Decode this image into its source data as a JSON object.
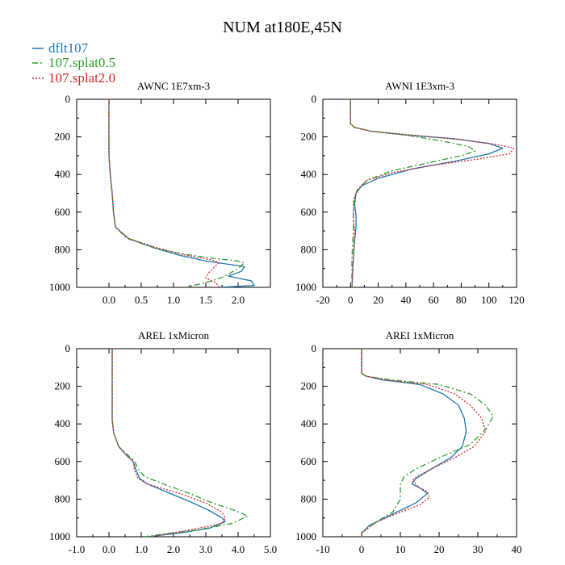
{
  "figure_title": "NUM at180E,45N",
  "colors": {
    "dflt107": "#1f77b4",
    "splat05": "#2ca02c",
    "splat20": "#d62728",
    "axis": "#000000"
  },
  "legend": [
    {
      "label": "dflt107",
      "color": "#1f77b4",
      "dash": "solid"
    },
    {
      "label": "107.splat0.5",
      "color": "#2ca02c",
      "dash": "dashdot"
    },
    {
      "label": "107.splat2.0",
      "color": "#d62728",
      "dash": "dotted"
    }
  ],
  "chart_data": [
    {
      "type": "line",
      "title": "AWNC  1E7xm-3",
      "xlim": [
        -0.5,
        2.5
      ],
      "ylim": [
        1000,
        0
      ],
      "xticks": [
        0.0,
        0.5,
        1.0,
        1.5,
        2.0
      ],
      "xtick_labels": [
        "0.0",
        "0.5",
        "1.0",
        "1.5",
        "2.0"
      ],
      "yticks": [
        0,
        200,
        400,
        600,
        800,
        1000
      ],
      "ytick_labels": [
        "0",
        "200",
        "400",
        "600",
        "800",
        "1000"
      ],
      "series": [
        {
          "name": "dflt107",
          "points": [
            [
              0.0,
              0
            ],
            [
              0.0,
              300
            ],
            [
              0.02,
              400
            ],
            [
              0.05,
              500
            ],
            [
              0.07,
              600
            ],
            [
              0.1,
              680
            ],
            [
              0.3,
              740
            ],
            [
              0.7,
              790
            ],
            [
              1.1,
              830
            ],
            [
              1.5,
              860
            ],
            [
              1.9,
              880
            ],
            [
              2.1,
              890
            ],
            [
              2.05,
              915
            ],
            [
              1.85,
              940
            ],
            [
              2.05,
              955
            ],
            [
              2.2,
              965
            ],
            [
              2.25,
              990
            ],
            [
              1.7,
              1000
            ]
          ]
        },
        {
          "name": "107.splat0.5",
          "points": [
            [
              0.0,
              0
            ],
            [
              0.0,
              300
            ],
            [
              0.02,
              400
            ],
            [
              0.05,
              500
            ],
            [
              0.07,
              600
            ],
            [
              0.1,
              680
            ],
            [
              0.28,
              740
            ],
            [
              0.7,
              790
            ],
            [
              1.1,
              820
            ],
            [
              1.6,
              845
            ],
            [
              2.0,
              860
            ],
            [
              2.1,
              870
            ],
            [
              2.0,
              900
            ],
            [
              1.8,
              940
            ],
            [
              1.6,
              965
            ],
            [
              1.2,
              1000
            ]
          ]
        },
        {
          "name": "107.splat2.0",
          "points": [
            [
              0.0,
              0
            ],
            [
              0.0,
              300
            ],
            [
              0.02,
              400
            ],
            [
              0.05,
              500
            ],
            [
              0.07,
              600
            ],
            [
              0.1,
              680
            ],
            [
              0.3,
              740
            ],
            [
              0.75,
              790
            ],
            [
              1.2,
              830
            ],
            [
              1.6,
              855
            ],
            [
              1.7,
              870
            ],
            [
              1.55,
              920
            ],
            [
              1.5,
              950
            ],
            [
              1.65,
              975
            ],
            [
              1.72,
              1000
            ]
          ]
        }
      ]
    },
    {
      "type": "line",
      "title": "AWNI  1E3xm-3",
      "xlim": [
        -20,
        120
      ],
      "ylim": [
        1000,
        0
      ],
      "xticks": [
        -20,
        0,
        20,
        40,
        60,
        80,
        100,
        120
      ],
      "xtick_labels": [
        "-20",
        "0",
        "20",
        "40",
        "60",
        "80",
        "100",
        "120"
      ],
      "yticks": [
        0,
        200,
        400,
        600,
        800,
        1000
      ],
      "ytick_labels": [
        "0",
        "200",
        "400",
        "600",
        "800",
        "1000"
      ],
      "series": [
        {
          "name": "dflt107",
          "points": [
            [
              0,
              0
            ],
            [
              0,
              130
            ],
            [
              3,
              150
            ],
            [
              15,
              170
            ],
            [
              40,
              190
            ],
            [
              75,
              210
            ],
            [
              100,
              235
            ],
            [
              110,
              260
            ],
            [
              100,
              290
            ],
            [
              75,
              330
            ],
            [
              45,
              370
            ],
            [
              20,
              420
            ],
            [
              8,
              460
            ],
            [
              4,
              500
            ],
            [
              3,
              560
            ],
            [
              4,
              620
            ],
            [
              4,
              680
            ],
            [
              3,
              750
            ],
            [
              2,
              850
            ],
            [
              1,
              1000
            ]
          ]
        },
        {
          "name": "107.splat0.5",
          "points": [
            [
              0,
              0
            ],
            [
              0,
              130
            ],
            [
              3,
              150
            ],
            [
              15,
              170
            ],
            [
              40,
              190
            ],
            [
              65,
              220
            ],
            [
              85,
              250
            ],
            [
              90,
              275
            ],
            [
              80,
              300
            ],
            [
              55,
              340
            ],
            [
              30,
              380
            ],
            [
              12,
              430
            ],
            [
              5,
              480
            ],
            [
              3,
              520
            ],
            [
              2,
              620
            ],
            [
              2,
              700
            ],
            [
              1,
              850
            ],
            [
              1,
              1000
            ]
          ]
        },
        {
          "name": "107.splat2.0",
          "points": [
            [
              0,
              0
            ],
            [
              0,
              130
            ],
            [
              3,
              150
            ],
            [
              15,
              170
            ],
            [
              45,
              190
            ],
            [
              80,
              215
            ],
            [
              105,
              240
            ],
            [
              118,
              260
            ],
            [
              115,
              290
            ],
            [
              90,
              320
            ],
            [
              60,
              350
            ],
            [
              30,
              390
            ],
            [
              12,
              430
            ],
            [
              5,
              480
            ],
            [
              2,
              540
            ],
            [
              2,
              620
            ],
            [
              3,
              700
            ],
            [
              2,
              850
            ],
            [
              1,
              1000
            ]
          ]
        }
      ]
    },
    {
      "type": "line",
      "title": "AREL  1xMicron",
      "xlim": [
        -1.0,
        5.0
      ],
      "ylim": [
        1000,
        0
      ],
      "xticks": [
        -1.0,
        0.0,
        1.0,
        2.0,
        3.0,
        4.0,
        5.0
      ],
      "xtick_labels": [
        "-1.0",
        "0.0",
        "1.0",
        "2.0",
        "3.0",
        "4.0",
        "5.0"
      ],
      "yticks": [
        0,
        200,
        400,
        600,
        800,
        1000
      ],
      "ytick_labels": [
        "0",
        "200",
        "400",
        "600",
        "800",
        "1000"
      ],
      "series": [
        {
          "name": "dflt107",
          "points": [
            [
              0.1,
              0
            ],
            [
              0.1,
              380
            ],
            [
              0.15,
              450
            ],
            [
              0.3,
              520
            ],
            [
              0.5,
              560
            ],
            [
              0.75,
              600
            ],
            [
              0.85,
              650
            ],
            [
              0.95,
              690
            ],
            [
              1.2,
              720
            ],
            [
              1.9,
              770
            ],
            [
              2.6,
              820
            ],
            [
              3.1,
              860
            ],
            [
              3.5,
              900
            ],
            [
              3.6,
              920
            ],
            [
              3.1,
              955
            ],
            [
              2.2,
              980
            ],
            [
              1.2,
              1000
            ]
          ]
        },
        {
          "name": "107.splat0.5",
          "points": [
            [
              0.1,
              0
            ],
            [
              0.1,
              380
            ],
            [
              0.15,
              450
            ],
            [
              0.3,
              520
            ],
            [
              0.55,
              560
            ],
            [
              0.8,
              600
            ],
            [
              0.9,
              640
            ],
            [
              1.1,
              680
            ],
            [
              1.7,
              720
            ],
            [
              2.5,
              770
            ],
            [
              3.2,
              820
            ],
            [
              3.9,
              860
            ],
            [
              4.3,
              890
            ],
            [
              3.8,
              930
            ],
            [
              2.7,
              965
            ],
            [
              1.7,
              985
            ],
            [
              1.1,
              1000
            ]
          ]
        },
        {
          "name": "107.splat2.0",
          "points": [
            [
              0.1,
              0
            ],
            [
              0.1,
              380
            ],
            [
              0.15,
              450
            ],
            [
              0.3,
              520
            ],
            [
              0.5,
              560
            ],
            [
              0.75,
              600
            ],
            [
              0.8,
              650
            ],
            [
              0.9,
              690
            ],
            [
              1.2,
              720
            ],
            [
              2.2,
              770
            ],
            [
              3.0,
              820
            ],
            [
              3.5,
              870
            ],
            [
              3.6,
              900
            ],
            [
              3.5,
              930
            ],
            [
              2.6,
              960
            ],
            [
              1.8,
              985
            ],
            [
              1.3,
              1000
            ]
          ]
        }
      ]
    },
    {
      "type": "line",
      "title": "AREI  1xMicron",
      "xlim": [
        -10,
        40
      ],
      "ylim": [
        1000,
        0
      ],
      "xticks": [
        -10,
        0,
        10,
        20,
        30,
        40
      ],
      "xtick_labels": [
        "-10",
        "0",
        "10",
        "20",
        "30",
        "40"
      ],
      "yticks": [
        0,
        200,
        400,
        600,
        800,
        1000
      ],
      "ytick_labels": [
        "0",
        "200",
        "400",
        "600",
        "800",
        "1000"
      ],
      "series": [
        {
          "name": "dflt107",
          "points": [
            [
              0,
              0
            ],
            [
              0,
              130
            ],
            [
              1,
              145
            ],
            [
              5,
              165
            ],
            [
              15,
              190
            ],
            [
              21,
              240
            ],
            [
              25,
              300
            ],
            [
              26.5,
              370
            ],
            [
              27,
              440
            ],
            [
              26,
              520
            ],
            [
              23,
              580
            ],
            [
              18,
              640
            ],
            [
              14,
              690
            ],
            [
              13,
              720
            ],
            [
              14,
              730
            ],
            [
              15,
              740
            ],
            [
              17,
              770
            ],
            [
              14,
              820
            ],
            [
              8,
              880
            ],
            [
              2,
              940
            ],
            [
              0,
              980
            ],
            [
              0,
              1000
            ]
          ]
        },
        {
          "name": "107.splat0.5",
          "points": [
            [
              0,
              0
            ],
            [
              0,
              130
            ],
            [
              1,
              145
            ],
            [
              7,
              165
            ],
            [
              20,
              190
            ],
            [
              28,
              240
            ],
            [
              32,
              300
            ],
            [
              34,
              360
            ],
            [
              32,
              430
            ],
            [
              28,
              510
            ],
            [
              20,
              580
            ],
            [
              14,
              640
            ],
            [
              11,
              680
            ],
            [
              10,
              720
            ],
            [
              10,
              800
            ],
            [
              8,
              870
            ],
            [
              3,
              930
            ],
            [
              0,
              980
            ],
            [
              0,
              1000
            ]
          ]
        },
        {
          "name": "107.splat2.0",
          "points": [
            [
              0,
              0
            ],
            [
              0,
              130
            ],
            [
              1,
              145
            ],
            [
              6,
              165
            ],
            [
              17,
              190
            ],
            [
              24,
              240
            ],
            [
              28,
              300
            ],
            [
              31,
              370
            ],
            [
              32,
              440
            ],
            [
              29,
              520
            ],
            [
              24,
              580
            ],
            [
              19,
              630
            ],
            [
              15,
              670
            ],
            [
              13,
              700
            ],
            [
              14,
              720
            ],
            [
              15,
              740
            ],
            [
              17,
              760
            ],
            [
              17.5,
              790
            ],
            [
              15,
              830
            ],
            [
              10,
              870
            ],
            [
              4,
              920
            ],
            [
              0,
              980
            ],
            [
              0,
              1000
            ]
          ]
        }
      ]
    }
  ]
}
